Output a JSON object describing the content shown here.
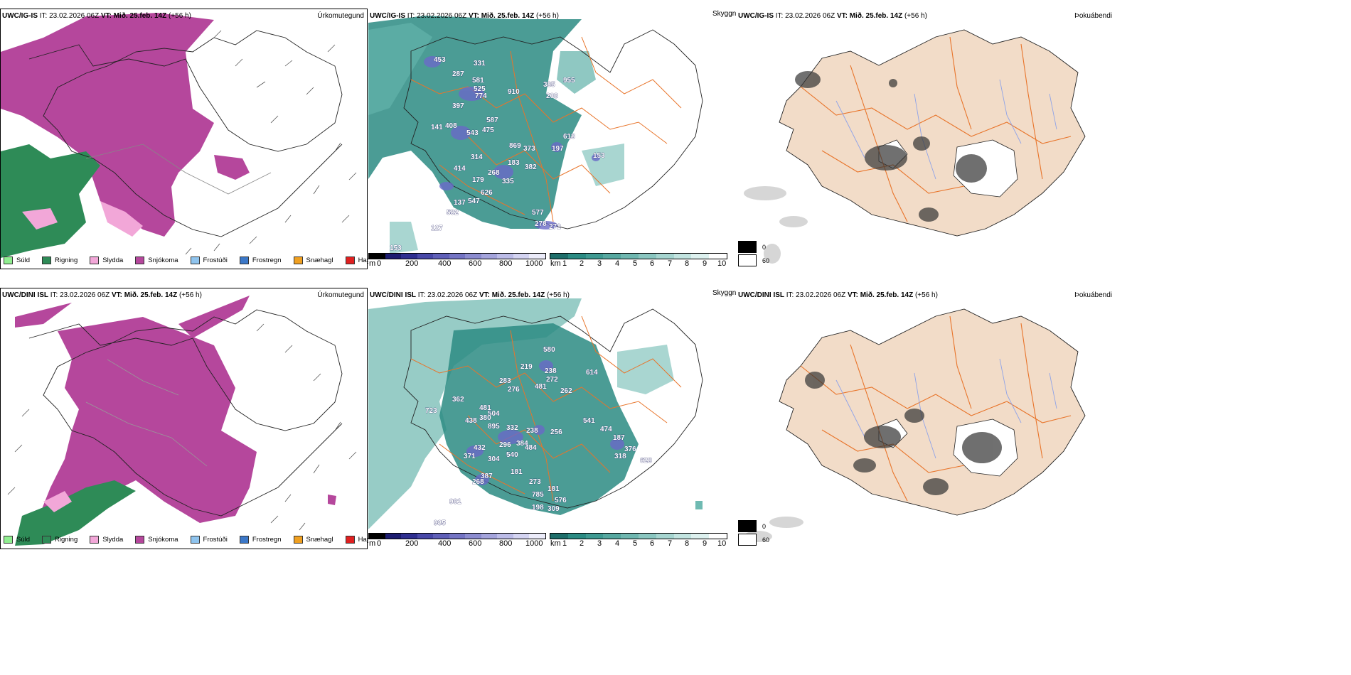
{
  "rows": [
    {
      "model": "UWC/IG-IS",
      "info": " IT: 23.02.2026 06Z ",
      "vt_prefix": "VT:",
      "vt": " Mið. 25.feb. 14Z",
      "lead": " (+56 h)",
      "precip_title": "Úrkomutegund",
      "ceiling_title": "Skyggni",
      "fog_title": "Þokuábendi",
      "ceiling_labels": [
        "453",
        "331",
        "287",
        "581",
        "525",
        "774",
        "910",
        "397",
        "587",
        "141",
        "408",
        "543",
        "475",
        "869",
        "373",
        "197",
        "618",
        "153",
        "314",
        "183",
        "382",
        "268",
        "179",
        "335",
        "626",
        "137",
        "547",
        "582",
        "577",
        "278",
        "272",
        "127",
        "153",
        "385",
        "955",
        "208",
        "414"
      ]
    },
    {
      "model": "UWC/DINI ISL",
      "info": " IT: 23.02.2026 06Z ",
      "vt_prefix": "VT:",
      "vt": " Mið. 25.feb. 14Z",
      "lead": " (+56 h)",
      "precip_title": "Úrkomutegund",
      "ceiling_title": "Skyggni",
      "fog_title": "Þokuábendi",
      "ceiling_labels": [
        "580",
        "219",
        "238",
        "614",
        "272",
        "283",
        "276",
        "481",
        "262",
        "362",
        "723",
        "481",
        "504",
        "438",
        "380",
        "895",
        "332",
        "238",
        "256",
        "541",
        "474",
        "187",
        "376",
        "318",
        "628",
        "296",
        "384",
        "484",
        "432",
        "540",
        "371",
        "304",
        "387",
        "268",
        "273",
        "181",
        "785",
        "576",
        "198",
        "309",
        "981",
        "985",
        "181"
      ]
    }
  ],
  "precip_legend": [
    {
      "label": "Súld",
      "color": "#90ee90"
    },
    {
      "label": "Rigning",
      "color": "#2e8b57"
    },
    {
      "label": "Slydda",
      "color": "#f2a7d8"
    },
    {
      "label": "Snjókoma",
      "color": "#b5479c"
    },
    {
      "label": "Frostúði",
      "color": "#8fc4ee"
    },
    {
      "label": "Frostregn",
      "color": "#3c78c8"
    },
    {
      "label": "Snæhagl",
      "color": "#f0a020"
    },
    {
      "label": "Haglél",
      "color": "#e02020"
    }
  ],
  "ceiling_bar": {
    "unit": "m",
    "ticks": [
      "0",
      "200",
      "400",
      "600",
      "800",
      "1000"
    ]
  },
  "visibility_bar": {
    "unit": "km",
    "ticks": [
      "1",
      "2",
      "3",
      "4",
      "5",
      "6",
      "7",
      "8",
      "9",
      "10"
    ]
  },
  "fog_legend": [
    "0",
    "60"
  ],
  "colors": {
    "snow": "#b5479c",
    "rain": "#2e8b57",
    "sleet": "#f2a7d8",
    "teal": "#2b8b83",
    "land": "#f2dcc8",
    "roads": "#e8742a",
    "rivers": "#8fa3e8"
  }
}
